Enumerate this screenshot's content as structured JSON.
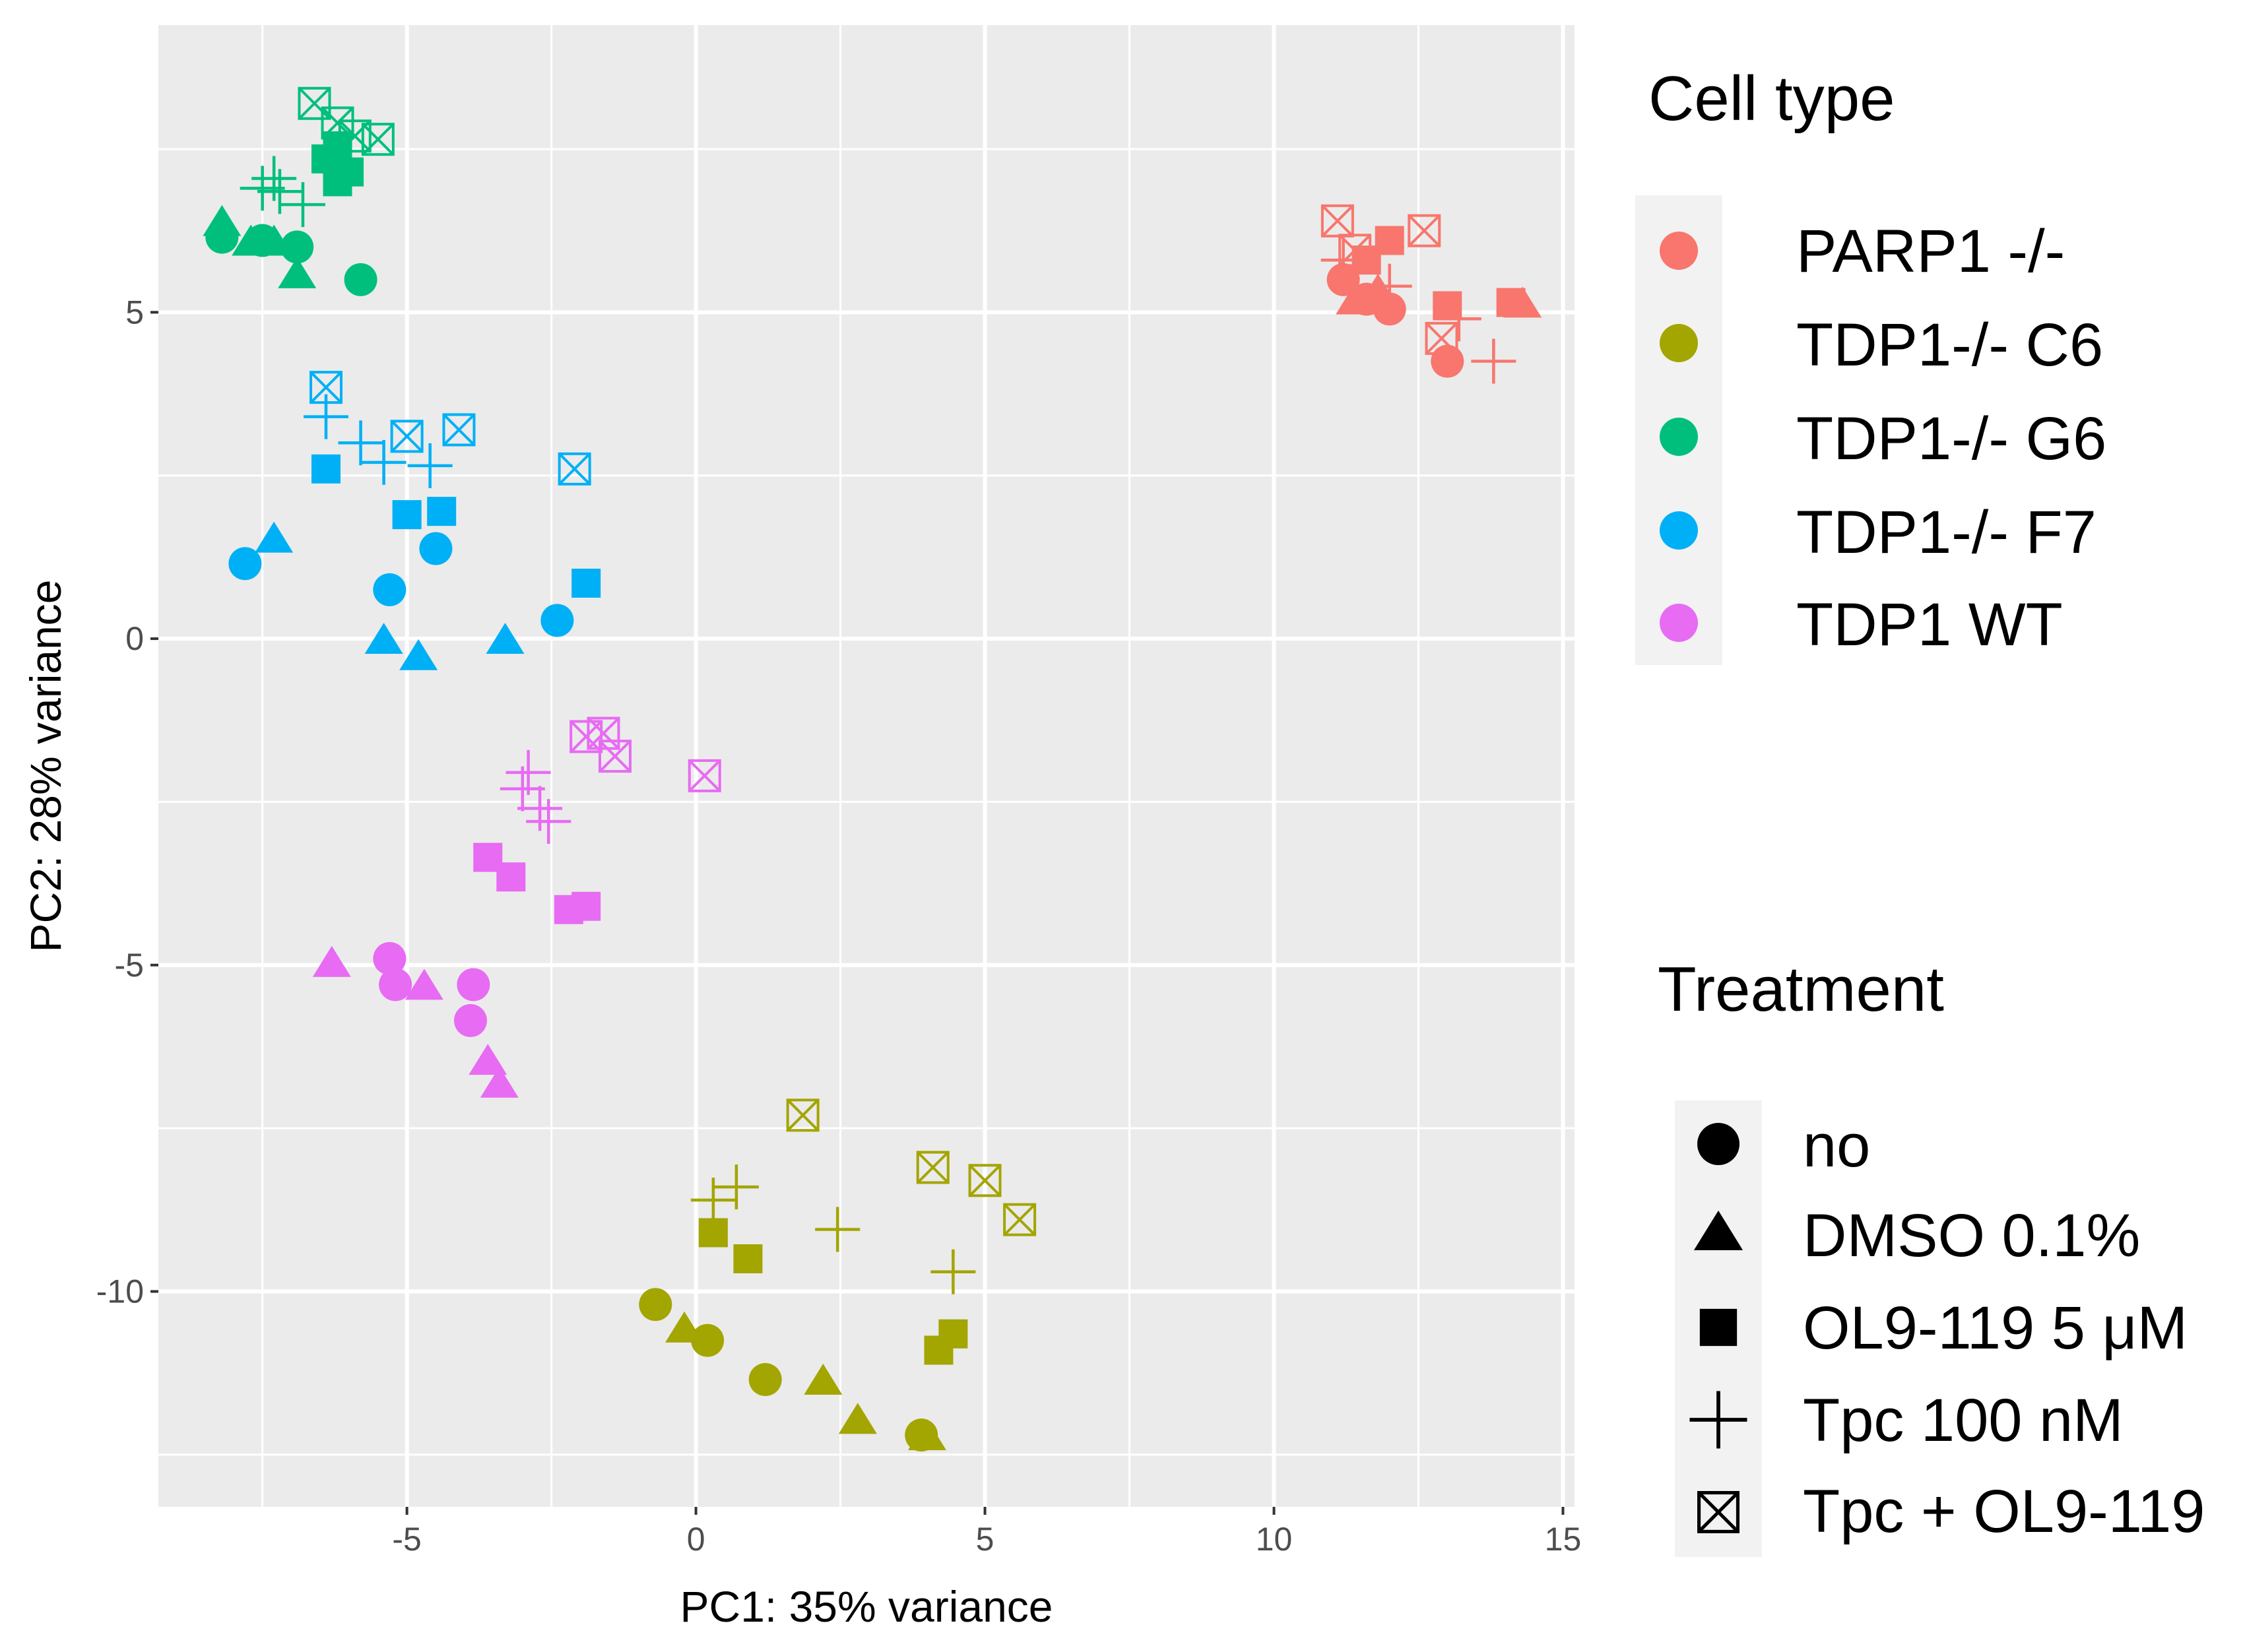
{
  "chart_data": {
    "type": "scatter",
    "title": "",
    "xlabel": "PC1: 35% variance",
    "ylabel": "PC2: 28% variance",
    "xlim": [
      -9.3,
      15.2
    ],
    "ylim": [
      -13.3,
      9.4
    ],
    "xticks": [
      -5,
      0,
      5,
      10,
      15
    ],
    "yticks": [
      -10,
      -5,
      0,
      5
    ],
    "xtick_labels": [
      "-5",
      "0",
      "5",
      "10",
      "15"
    ],
    "ytick_labels": [
      "-10",
      "-5",
      "0",
      "5"
    ],
    "grid": true,
    "color_legend": {
      "title": "Cell type",
      "entries": [
        {
          "name": "PARP1 -/-",
          "color": "#F8766D"
        },
        {
          "name": "TDP1-/- C6",
          "color": "#A3A500"
        },
        {
          "name": "TDP1-/- G6",
          "color": "#00BF7D"
        },
        {
          "name": "TDP1-/- F7",
          "color": "#00B0F6"
        },
        {
          "name": "TDP1 WT",
          "color": "#E76BF3"
        }
      ]
    },
    "shape_legend": {
      "title": "Treatment",
      "entries": [
        {
          "name": "no",
          "shape": "circle"
        },
        {
          "name": "DMSO 0.1%",
          "shape": "triangle"
        },
        {
          "name": "OL9-119 5 μM",
          "shape": "square"
        },
        {
          "name": "Tpc 100 nM",
          "shape": "plus"
        },
        {
          "name": "Tpc + OL9-119",
          "shape": "boxx"
        }
      ]
    },
    "series": [
      {
        "cell_type": "PARP1 -/-",
        "color": "#F8766D",
        "points": [
          {
            "x": 11.2,
            "y": 5.5,
            "t": "circle"
          },
          {
            "x": 11.6,
            "y": 5.2,
            "t": "circle"
          },
          {
            "x": 12.0,
            "y": 5.05,
            "t": "circle"
          },
          {
            "x": 13.0,
            "y": 4.25,
            "t": "circle"
          },
          {
            "x": 11.4,
            "y": 5.15,
            "t": "triangle"
          },
          {
            "x": 11.8,
            "y": 5.3,
            "t": "triangle"
          },
          {
            "x": 14.3,
            "y": 5.1,
            "t": "triangle"
          },
          {
            "x": 12.0,
            "y": 6.1,
            "t": "square"
          },
          {
            "x": 13.0,
            "y": 5.1,
            "t": "square"
          },
          {
            "x": 14.1,
            "y": 5.15,
            "t": "square"
          },
          {
            "x": 11.6,
            "y": 5.8,
            "t": "square"
          },
          {
            "x": 11.2,
            "y": 5.8,
            "t": "plus"
          },
          {
            "x": 12.0,
            "y": 5.4,
            "t": "plus"
          },
          {
            "x": 13.2,
            "y": 4.9,
            "t": "plus"
          },
          {
            "x": 13.8,
            "y": 4.25,
            "t": "plus"
          },
          {
            "x": 11.1,
            "y": 6.4,
            "t": "boxx"
          },
          {
            "x": 11.4,
            "y": 5.95,
            "t": "boxx"
          },
          {
            "x": 12.6,
            "y": 6.25,
            "t": "boxx"
          },
          {
            "x": 12.9,
            "y": 4.6,
            "t": "boxx"
          }
        ]
      },
      {
        "cell_type": "TDP1-/- C6",
        "color": "#A3A500",
        "points": [
          {
            "x": -0.7,
            "y": -10.2,
            "t": "circle"
          },
          {
            "x": 0.2,
            "y": -10.75,
            "t": "circle"
          },
          {
            "x": 1.2,
            "y": -11.35,
            "t": "circle"
          },
          {
            "x": 3.9,
            "y": -12.2,
            "t": "circle"
          },
          {
            "x": -0.2,
            "y": -10.6,
            "t": "triangle"
          },
          {
            "x": 2.2,
            "y": -11.4,
            "t": "triangle"
          },
          {
            "x": 2.8,
            "y": -12.0,
            "t": "triangle"
          },
          {
            "x": 4.0,
            "y": -12.25,
            "t": "triangle"
          },
          {
            "x": 0.3,
            "y": -9.1,
            "t": "square"
          },
          {
            "x": 0.9,
            "y": -9.5,
            "t": "square"
          },
          {
            "x": 4.2,
            "y": -10.9,
            "t": "square"
          },
          {
            "x": 4.45,
            "y": -10.65,
            "t": "square"
          },
          {
            "x": 0.3,
            "y": -8.6,
            "t": "plus"
          },
          {
            "x": 0.7,
            "y": -8.4,
            "t": "plus"
          },
          {
            "x": 2.45,
            "y": -9.05,
            "t": "plus"
          },
          {
            "x": 4.45,
            "y": -9.7,
            "t": "plus"
          },
          {
            "x": 1.85,
            "y": -7.3,
            "t": "boxx"
          },
          {
            "x": 4.1,
            "y": -8.1,
            "t": "boxx"
          },
          {
            "x": 5.0,
            "y": -8.3,
            "t": "boxx"
          },
          {
            "x": 5.6,
            "y": -8.9,
            "t": "boxx"
          }
        ]
      },
      {
        "cell_type": "TDP1-/- G6",
        "color": "#00BF7D",
        "points": [
          {
            "x": -8.2,
            "y": 6.15,
            "t": "circle"
          },
          {
            "x": -7.5,
            "y": 6.1,
            "t": "circle"
          },
          {
            "x": -6.9,
            "y": 6.0,
            "t": "circle"
          },
          {
            "x": -5.8,
            "y": 5.5,
            "t": "circle"
          },
          {
            "x": -8.2,
            "y": 6.35,
            "t": "triangle"
          },
          {
            "x": -7.7,
            "y": 6.05,
            "t": "triangle"
          },
          {
            "x": -7.3,
            "y": 6.05,
            "t": "triangle"
          },
          {
            "x": -6.9,
            "y": 5.55,
            "t": "triangle"
          },
          {
            "x": -6.4,
            "y": 7.35,
            "t": "square"
          },
          {
            "x": -6.2,
            "y": 7.55,
            "t": "square"
          },
          {
            "x": -6.2,
            "y": 7.0,
            "t": "square"
          },
          {
            "x": -6.0,
            "y": 7.15,
            "t": "square"
          },
          {
            "x": -7.5,
            "y": 6.9,
            "t": "plus"
          },
          {
            "x": -7.3,
            "y": 7.05,
            "t": "plus"
          },
          {
            "x": -7.2,
            "y": 6.85,
            "t": "plus"
          },
          {
            "x": -6.8,
            "y": 6.65,
            "t": "plus"
          },
          {
            "x": -6.6,
            "y": 8.2,
            "t": "boxx"
          },
          {
            "x": -6.2,
            "y": 7.9,
            "t": "boxx"
          },
          {
            "x": -5.9,
            "y": 7.7,
            "t": "boxx"
          },
          {
            "x": -5.5,
            "y": 7.65,
            "t": "boxx"
          }
        ]
      },
      {
        "cell_type": "TDP1-/- F7",
        "color": "#00B0F6",
        "points": [
          {
            "x": -7.8,
            "y": 1.15,
            "t": "circle"
          },
          {
            "x": -5.3,
            "y": 0.75,
            "t": "circle"
          },
          {
            "x": -4.5,
            "y": 1.38,
            "t": "circle"
          },
          {
            "x": -2.4,
            "y": 0.28,
            "t": "circle"
          },
          {
            "x": -7.3,
            "y": 1.5,
            "t": "triangle"
          },
          {
            "x": -5.4,
            "y": -0.05,
            "t": "triangle"
          },
          {
            "x": -4.8,
            "y": -0.3,
            "t": "triangle"
          },
          {
            "x": -3.3,
            "y": -0.05,
            "t": "triangle"
          },
          {
            "x": -6.4,
            "y": 2.6,
            "t": "square"
          },
          {
            "x": -5.0,
            "y": 1.9,
            "t": "square"
          },
          {
            "x": -4.4,
            "y": 1.95,
            "t": "square"
          },
          {
            "x": -1.9,
            "y": 0.85,
            "t": "square"
          },
          {
            "x": -6.4,
            "y": 3.4,
            "t": "plus"
          },
          {
            "x": -5.8,
            "y": 3.0,
            "t": "plus"
          },
          {
            "x": -5.4,
            "y": 2.7,
            "t": "plus"
          },
          {
            "x": -4.6,
            "y": 2.65,
            "t": "plus"
          },
          {
            "x": -6.4,
            "y": 3.85,
            "t": "boxx"
          },
          {
            "x": -5.0,
            "y": 3.1,
            "t": "boxx"
          },
          {
            "x": -4.1,
            "y": 3.2,
            "t": "boxx"
          },
          {
            "x": -2.1,
            "y": 2.6,
            "t": "boxx"
          }
        ]
      },
      {
        "cell_type": "TDP1 WT",
        "color": "#E76BF3",
        "points": [
          {
            "x": -5.3,
            "y": -4.9,
            "t": "circle"
          },
          {
            "x": -5.2,
            "y": -5.3,
            "t": "circle"
          },
          {
            "x": -3.85,
            "y": -5.3,
            "t": "circle"
          },
          {
            "x": -3.9,
            "y": -5.85,
            "t": "circle"
          },
          {
            "x": -6.3,
            "y": -5.0,
            "t": "triangle"
          },
          {
            "x": -4.7,
            "y": -5.35,
            "t": "triangle"
          },
          {
            "x": -3.6,
            "y": -6.5,
            "t": "triangle"
          },
          {
            "x": -3.4,
            "y": -6.85,
            "t": "triangle"
          },
          {
            "x": -3.6,
            "y": -3.35,
            "t": "square"
          },
          {
            "x": -3.2,
            "y": -3.65,
            "t": "square"
          },
          {
            "x": -2.2,
            "y": -4.15,
            "t": "square"
          },
          {
            "x": -1.9,
            "y": -4.1,
            "t": "square"
          },
          {
            "x": -3.0,
            "y": -2.3,
            "t": "plus"
          },
          {
            "x": -2.9,
            "y": -2.05,
            "t": "plus"
          },
          {
            "x": -2.7,
            "y": -2.6,
            "t": "plus"
          },
          {
            "x": -2.55,
            "y": -2.8,
            "t": "plus"
          },
          {
            "x": -1.9,
            "y": -1.5,
            "t": "boxx"
          },
          {
            "x": -1.6,
            "y": -1.45,
            "t": "boxx"
          },
          {
            "x": -1.4,
            "y": -1.8,
            "t": "boxx"
          },
          {
            "x": 0.15,
            "y": -2.1,
            "t": "boxx"
          }
        ]
      }
    ]
  }
}
